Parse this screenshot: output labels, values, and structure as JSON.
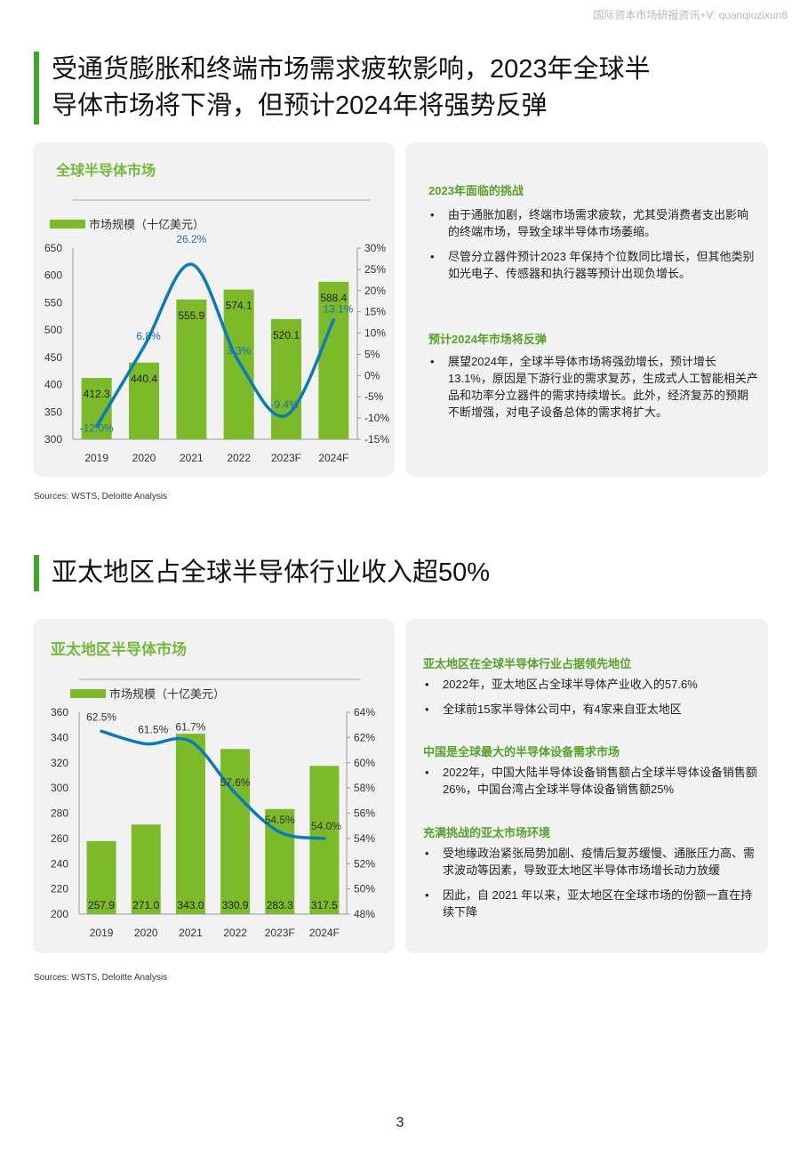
{
  "watermark": "国际资本市场研报资讯+V: quanqiuzixun8",
  "section1": {
    "title_line1": "受通货膨胀和终端市场需求疲软影响，2023年全球半",
    "title_line2": "导体市场将下滑，但预计2024年将强势反弹",
    "chart_title": "全球半导体市场",
    "text_panel": {
      "heading1": "2023年面临的挑战",
      "bullets1": [
        "由于通胀加剧，终端市场需求疲软，尤其受消费者支出影响的终端市场，导致全球半导体市场萎缩。",
        "尽管分立器件预计2023 年保持个位数同比增长，但其他类别如光电子、传感器和执行器等预计出现负增长。"
      ],
      "heading2": "预计2024年市场将反弹",
      "bullets2": [
        "展望2024年，全球半导体市场将强劲增长，预计增长13.1%，原因是下游行业的需求复苏，生成式人工智能相关产品和功率分立器件的需求持续增长。此外，经济复苏的预期不断增强，对电子设备总体的需求将扩大。"
      ]
    },
    "sources": "Sources: WSTS, Deloitte Analysis"
  },
  "section2": {
    "title": "亚太地区占全球半导体行业收入超50%",
    "chart_title": "亚太地区半导体市场",
    "text_panel": {
      "heading1": "亚太地区在全球半导体行业占据领先地位",
      "bullets1": [
        "2022年，亚太地区占全球半导体产业收入的57.6%",
        "全球前15家半导体公司中，有4家来自亚太地区"
      ],
      "heading2": "中国是全球最大的半导体设备需求市场",
      "bullets2": [
        "2022年，中国大陆半导体设备销售额占全球半导体设备销售额26%，中国台湾占全球半导体设备销售额25%"
      ],
      "heading3": "充满挑战的亚太市场环境",
      "bullets3": [
        "受地缘政治紧张局势加剧、疫情后复苏缓慢、通胀压力高、需求波动等因素，导致亚太地区半导体市场增长动力放缓",
        "因此，自 2021 年以来，亚太地区在全球市场的份额一直在持续下降"
      ]
    },
    "sources": "Sources: WSTS, Deloitte Analysis"
  },
  "page_number": "3",
  "colors": {
    "bar": "#7dba2a",
    "line": "#0b7bb8",
    "accent": "#43a229",
    "panel": "#f2f2f2"
  },
  "chart_data": [
    {
      "type": "bar",
      "title": "全球半导体市场",
      "categories": [
        "2019",
        "2020",
        "2021",
        "2022",
        "2023F",
        "2024F"
      ],
      "series": [
        {
          "name": "市场规模（十亿美元）",
          "type": "bar",
          "axis": "left",
          "values": [
            412.3,
            440.4,
            555.9,
            574.1,
            520.1,
            588.4
          ],
          "labels": [
            "412.3",
            "440.4",
            "555.9",
            "574.1",
            "520.1",
            "588.4"
          ]
        },
        {
          "type": "line",
          "axis": "right",
          "values": [
            -12.0,
            6.8,
            26.2,
            3.3,
            -9.4,
            13.1
          ],
          "labels": [
            "-12.0%",
            "6.8%",
            "26.2%",
            "3.3%",
            "-9.4%",
            "13.1%"
          ]
        }
      ],
      "ylim": [
        300,
        650
      ],
      "yticks": [
        "300",
        "350",
        "400",
        "450",
        "500",
        "550",
        "600",
        "650"
      ],
      "y2lim": [
        -15,
        30
      ],
      "y2ticks": [
        "-15%",
        "-10%",
        "-5%",
        "0%",
        "5%",
        "10%",
        "15%",
        "20%",
        "25%",
        "30%"
      ],
      "legend": "top-left",
      "grid": false
    },
    {
      "type": "bar",
      "title": "亚太地区半导体市场",
      "categories": [
        "2019",
        "2020",
        "2021",
        "2022",
        "2023F",
        "2024F"
      ],
      "series": [
        {
          "name": "市场规模（十亿美元）",
          "type": "bar",
          "axis": "left",
          "values": [
            257.9,
            271.0,
            343.0,
            330.9,
            283.3,
            317.5
          ],
          "labels": [
            "257.9",
            "271.0",
            "343.0",
            "330.9",
            "283.3",
            "317.5"
          ]
        },
        {
          "type": "line",
          "axis": "right",
          "values": [
            62.5,
            61.5,
            61.7,
            57.6,
            54.5,
            54.0
          ],
          "labels": [
            "62.5%",
            "61.5%",
            "61.7%",
            "57.6%",
            "54.5%",
            "54.0%"
          ]
        }
      ],
      "ylim": [
        200,
        360
      ],
      "yticks": [
        "200",
        "220",
        "240",
        "260",
        "280",
        "300",
        "320",
        "340",
        "360"
      ],
      "y2lim": [
        48,
        64
      ],
      "y2ticks": [
        "48%",
        "50%",
        "52%",
        "54%",
        "56%",
        "58%",
        "60%",
        "62%",
        "64%"
      ],
      "legend": "top-left",
      "grid": false
    }
  ]
}
